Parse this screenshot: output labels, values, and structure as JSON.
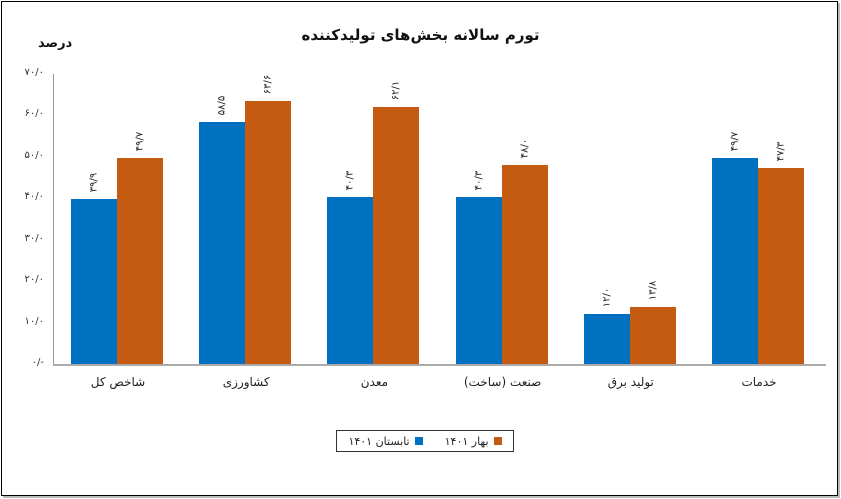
{
  "chart_data": {
    "type": "bar",
    "title": "تورم سالانه بخش‌های تولیدکننده",
    "ylabel": "درصد",
    "xlabel": "",
    "ylim": [
      0,
      70
    ],
    "yticks": [
      "۰/-",
      "۱۰/۰",
      "۲۰/۰",
      "۳۰/۰",
      "۴۰/۰",
      "۵۰/۰",
      "۶۰/۰",
      "۷۰/۰"
    ],
    "ytick_values": [
      0,
      10,
      20,
      30,
      40,
      50,
      60,
      70
    ],
    "grid": false,
    "legend_position": "bottom",
    "categories": [
      "شاخص کل",
      "کشاورزی",
      "معدن",
      "صنعت (ساخت)",
      "تولید برق",
      "خدمات"
    ],
    "series": [
      {
        "name": "تابستان ۱۴۰۱",
        "color": "#0070c0",
        "values": [
          39.9,
          58.5,
          40.3,
          40.3,
          12.0,
          49.7
        ],
        "labels": [
          "۳۹/۹",
          "۵۸/۵",
          "۴۰/۳",
          "۴۰/۳",
          "۱۲/۰",
          "۴۹/۷"
        ]
      },
      {
        "name": "بهار ۱۴۰۱",
        "color": "#c55a11",
        "values": [
          49.7,
          63.6,
          62.1,
          48.0,
          13.8,
          47.3
        ],
        "labels": [
          "۴۹/۷",
          "۶۳/۶",
          "۶۲/۱",
          "۴۸/۰",
          "۱۳/۸",
          "۴۷/۳"
        ]
      }
    ]
  },
  "legend": {
    "items": [
      {
        "label": "بهار ۱۴۰۱",
        "color": "#c55a11"
      },
      {
        "label": "تابستان ۱۴۰۱",
        "color": "#0070c0"
      }
    ]
  }
}
